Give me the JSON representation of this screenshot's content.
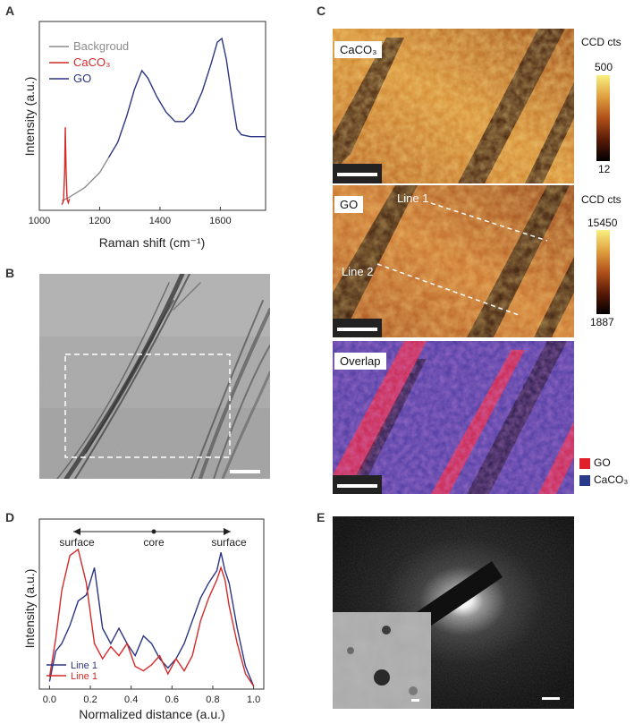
{
  "panels": {
    "a": "A",
    "b": "B",
    "c": "C",
    "d": "D",
    "e": "E"
  },
  "panel_c": {
    "map1_label": "CaCO₃",
    "map2_label": "GO",
    "map3_label": "Overlap",
    "line1_label": "Line 1",
    "line2_label": "Line 2",
    "cb1_title": "CCD cts",
    "cb1_max": "500",
    "cb1_min": "12",
    "cb2_title": "CCD cts",
    "cb2_max": "15450",
    "cb2_min": "1887",
    "legend_go": "GO",
    "legend_caco3": "CaCO₃",
    "colors": {
      "go": "#e0202a",
      "caco3": "#2a3a8a"
    }
  },
  "chart_data": [
    {
      "type": "line",
      "panel": "A",
      "xlabel": "Raman shift  (cm⁻¹)",
      "ylabel": "Intensity  (a.u.)",
      "xlim": [
        1000,
        1750
      ],
      "xticks": [
        "1000",
        "1200",
        "1400",
        "1600"
      ],
      "legend": [
        {
          "name": "Backgroud",
          "color": "#8c8c8c"
        },
        {
          "name": "CaCO₃",
          "color": "#d42a2a"
        },
        {
          "name": "GO",
          "color": "#2b3582"
        }
      ],
      "series": [
        {
          "name": "Backgroud",
          "x": [
            1075,
            1100,
            1150,
            1200,
            1230
          ],
          "y": [
            0.05,
            0.07,
            0.12,
            0.2,
            0.28
          ]
        },
        {
          "name": "CaCO₃",
          "x": [
            1075,
            1080,
            1084,
            1086,
            1089,
            1092,
            1096,
            1100
          ],
          "y": [
            0.03,
            0.05,
            0.2,
            0.44,
            0.2,
            0.06,
            0.04,
            0.06
          ]
        },
        {
          "name": "GO",
          "x": [
            1230,
            1260,
            1290,
            1315,
            1340,
            1360,
            1390,
            1420,
            1450,
            1480,
            1510,
            1540,
            1570,
            1590,
            1605,
            1620,
            1640,
            1655,
            1670,
            1700,
            1750
          ],
          "y": [
            0.28,
            0.36,
            0.5,
            0.64,
            0.74,
            0.7,
            0.6,
            0.52,
            0.47,
            0.47,
            0.52,
            0.63,
            0.78,
            0.89,
            0.91,
            0.8,
            0.58,
            0.43,
            0.4,
            0.39,
            0.39
          ]
        }
      ]
    },
    {
      "type": "line",
      "panel": "D",
      "xlabel": "Normalized distance  (a.u.)",
      "ylabel": "Intensity  (a.u.)",
      "xlim": [
        -0.05,
        1.05
      ],
      "xticks": [
        "0.0",
        "0.2",
        "0.4",
        "0.6",
        "0.8",
        "1.0"
      ],
      "annotations": {
        "left": "surface",
        "center": "core",
        "right": "surface"
      },
      "legend": [
        {
          "name": "Line 1",
          "color": "#2b3582"
        },
        {
          "name": "Line 1",
          "color": "#d42a2a"
        }
      ],
      "series": [
        {
          "name": "Line 1",
          "x": [
            0.0,
            0.03,
            0.06,
            0.1,
            0.14,
            0.18,
            0.22,
            0.26,
            0.3,
            0.34,
            0.38,
            0.42,
            0.46,
            0.5,
            0.54,
            0.58,
            0.62,
            0.66,
            0.7,
            0.74,
            0.78,
            0.82,
            0.84,
            0.86,
            0.88,
            0.92,
            0.96,
            1.0
          ],
          "y": [
            0.05,
            0.25,
            0.3,
            0.42,
            0.58,
            0.62,
            0.8,
            0.4,
            0.3,
            0.4,
            0.3,
            0.22,
            0.35,
            0.3,
            0.2,
            0.14,
            0.2,
            0.3,
            0.45,
            0.6,
            0.7,
            0.78,
            0.9,
            0.78,
            0.7,
            0.4,
            0.15,
            0.02
          ]
        },
        {
          "name": "Line 1",
          "x": [
            0.0,
            0.03,
            0.06,
            0.1,
            0.14,
            0.18,
            0.22,
            0.26,
            0.3,
            0.34,
            0.38,
            0.42,
            0.46,
            0.5,
            0.54,
            0.58,
            0.62,
            0.66,
            0.7,
            0.74,
            0.78,
            0.82,
            0.84,
            0.86,
            0.88,
            0.92,
            0.96,
            1.0
          ],
          "y": [
            0.08,
            0.33,
            0.65,
            0.88,
            0.92,
            0.7,
            0.3,
            0.2,
            0.28,
            0.22,
            0.3,
            0.15,
            0.12,
            0.16,
            0.22,
            0.1,
            0.2,
            0.12,
            0.22,
            0.45,
            0.6,
            0.72,
            0.8,
            0.72,
            0.55,
            0.3,
            0.1,
            0.02
          ]
        }
      ]
    }
  ]
}
